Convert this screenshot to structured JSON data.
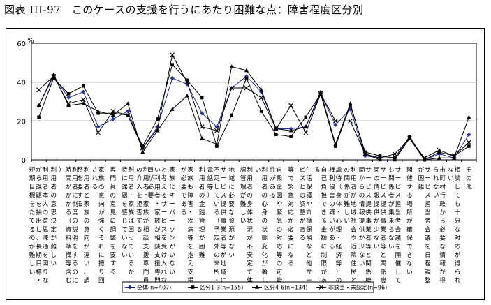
{
  "title": "図表 III-97　このケースの支援を行うにあたり困難な点：障害程度区分別",
  "chart_data": {
    "type": "line",
    "ylabel": "%",
    "ylim": [
      0,
      60
    ],
    "yticks": [
      0,
      20,
      40,
      60
    ],
    "grid": true,
    "legend_position": "bottom",
    "categories": [
      "利用者本人の意思疎通を図りながら課題を抽出し、長期目標・短期目標をたてるのが難しい",
      "利用者の意思決定が難しい",
      "利用者に制度の説明をするのに時間がかかる（資料準備等含む）",
      "利用者と家族の意向が違い、調整を要する",
      "家族の意向が強くそれに振り回される",
      "専門員の意見に調整を要する",
      "利用者・家族は困っているが、特に課題を感じていない",
      "利用者・家族が相談支援専門員の介入を拒否する",
      "と考えるサービスを受け入れない利用者・家族が相談支援専門員が必要",
      "家族にキーパーソンがいない",
      "家族も障害・疾病等を抱え支援が必要である",
      "利用者の金銭管理が困難",
      "サービス提供事業者等が地域に不足している（予定外の来所・電話等）",
      "地域に必要な資源がない",
      "利用者の身体状況が不安定で体調管理が難しい",
      "利用者の心身の状態変化が著しい",
      "自殺企図や緊急の対応等の可能性がある",
      "等で緊急対応が必要になる",
      "生活保護や介護保険など他サービスとの調整がある",
      "自己負担できる金額に制限がある",
      "虐待（身体・心理・経済等）の権利侵害の疑いがある",
      "利用者が地域社会や近隣住民との関係が難しい",
      "サービス提供事業者等と関係機関からの情報提供が少ない",
      "サービス提供事業者等と関係機関の情報提供が少ない",
      "サービス担当者会議を開催しても関係者が集まらない",
      "開催する場所が確保できない",
      "サービス担当者会議を日程調整が困難",
      "市町村行政から必要な情報が得られない",
      "相談しても十分な対応が得られない",
      "その他"
    ],
    "series": [
      {
        "name": "全体(n=407)",
        "values": [
          28,
          43,
          32,
          35,
          17,
          21,
          25,
          6,
          17,
          42,
          39,
          24,
          17,
          37,
          43,
          35,
          16,
          16,
          17,
          34,
          18,
          26,
          2,
          1,
          1,
          11,
          0,
          3,
          1,
          13
        ]
      },
      {
        "name": "区分1-3(n=155)",
        "values": [
          22,
          42,
          34,
          38,
          24,
          24,
          23,
          7,
          21,
          49,
          41,
          32,
          7,
          23,
          42,
          25,
          13,
          12,
          22,
          34,
          7,
          28,
          4,
          2,
          1,
          12,
          0,
          4,
          2,
          7
        ]
      },
      {
        "name": "区分4-6(n=134)",
        "values": [
          28,
          44,
          28,
          29,
          25,
          23,
          29,
          4,
          15,
          26,
          33,
          11,
          8,
          48,
          46,
          36,
          16,
          15,
          17,
          35,
          8,
          29,
          3,
          0,
          0,
          11,
          0,
          1,
          1,
          22
        ]
      },
      {
        "name": "非該当・未認定(n=96)",
        "values": [
          36,
          43,
          29,
          31,
          14,
          25,
          23,
          6,
          16,
          54,
          40,
          17,
          15,
          37,
          37,
          32,
          16,
          28,
          14,
          34,
          20,
          20,
          3,
          1,
          3,
          11,
          1,
          5,
          2,
          9
        ]
      }
    ]
  }
}
